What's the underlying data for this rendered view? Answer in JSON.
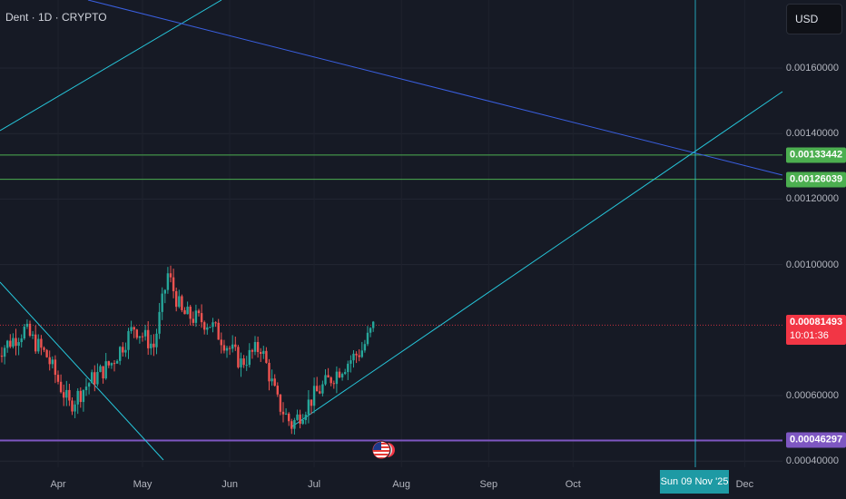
{
  "header": {
    "title": "Dent · 1D · CRYPTO",
    "currency": "USD"
  },
  "colors": {
    "background": "#161a25",
    "up": "#26a69a",
    "down": "#ef5350",
    "cyan_line": "#26c6da",
    "blue_line": "#3a5fe0",
    "green_level": "#4caf50",
    "purple_level": "#7e57c2",
    "price_tag": "#f23645",
    "crosshair_tag": "#1e9aa4"
  },
  "markers": {
    "level_1": "0.00133442",
    "level_2": "0.00126039",
    "current_price": "0.00081493",
    "countdown": "10:01:36",
    "support": "0.00046297",
    "crosshair_date": "Sun 09 Nov '25",
    "event_icon": "us-flag-icon"
  },
  "chart_data": {
    "type": "candlestick",
    "title": "Dent · 1D · CRYPTO",
    "y_ticks": [
      "0.00040000",
      "0.00060000",
      "0.00100000",
      "0.00120000",
      "0.00140000",
      "0.00160000"
    ],
    "x_ticks": [
      "Apr",
      "May",
      "Jun",
      "Jul",
      "Aug",
      "Sep",
      "Oct",
      "Dec"
    ],
    "ylim": [
      0.00038,
      0.00175
    ],
    "grid": true,
    "horizontal_levels": [
      0.00133442,
      0.00126039,
      0.00081493,
      0.00046297
    ],
    "close_series_approx": [
      {
        "date": "2025-03-10",
        "close": 0.00073
      },
      {
        "date": "2025-03-20",
        "close": 0.0008
      },
      {
        "date": "2025-03-28",
        "close": 0.00072
      },
      {
        "date": "2025-04-05",
        "close": 0.00057
      },
      {
        "date": "2025-04-12",
        "close": 0.00064
      },
      {
        "date": "2025-04-20",
        "close": 0.0007
      },
      {
        "date": "2025-04-28",
        "close": 0.00081
      },
      {
        "date": "2025-05-05",
        "close": 0.00075
      },
      {
        "date": "2025-05-10",
        "close": 0.00097
      },
      {
        "date": "2025-05-15",
        "close": 0.00085
      },
      {
        "date": "2025-05-25",
        "close": 0.00082
      },
      {
        "date": "2025-06-05",
        "close": 0.0007
      },
      {
        "date": "2025-06-12",
        "close": 0.00075
      },
      {
        "date": "2025-06-18",
        "close": 0.00058
      },
      {
        "date": "2025-06-23",
        "close": 0.00051
      },
      {
        "date": "2025-07-01",
        "close": 0.0006
      },
      {
        "date": "2025-07-10",
        "close": 0.00068
      },
      {
        "date": "2025-07-18",
        "close": 0.00074
      },
      {
        "date": "2025-07-22",
        "close": 0.00081
      }
    ]
  }
}
